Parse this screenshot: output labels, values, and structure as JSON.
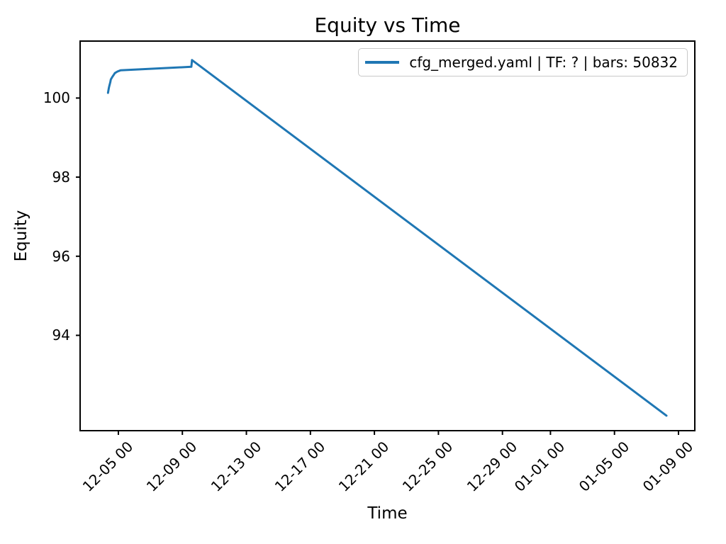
{
  "figure": {
    "background_color": "#ffffff",
    "text_color": "#000000",
    "spine_color": "#000000",
    "legend_border_color": "#c8c8c8"
  },
  "chart_data": {
    "type": "line",
    "title": "Equity vs Time",
    "xlabel": "Time",
    "ylabel": "Equity",
    "grid": false,
    "legend_position": "upper right",
    "x_unit_note": "x values are fractional day offsets from 12-01 00:00; tick labels shown as MM-DD HH",
    "xlim": [
      1.61,
      40.02
    ],
    "ylim": [
      91.59,
      101.44
    ],
    "x_ticks": [
      {
        "x": 4,
        "label": "12-05 00"
      },
      {
        "x": 8,
        "label": "12-09 00"
      },
      {
        "x": 12,
        "label": "12-13 00"
      },
      {
        "x": 16,
        "label": "12-17 00"
      },
      {
        "x": 20,
        "label": "12-21 00"
      },
      {
        "x": 24,
        "label": "12-25 00"
      },
      {
        "x": 28,
        "label": "12-29 00"
      },
      {
        "x": 31,
        "label": "01-01 00"
      },
      {
        "x": 35,
        "label": "01-05 00"
      },
      {
        "x": 39,
        "label": "01-09 00"
      }
    ],
    "y_ticks": [
      {
        "y": 94,
        "label": "94"
      },
      {
        "y": 96,
        "label": "96"
      },
      {
        "y": 98,
        "label": "98"
      },
      {
        "y": 100,
        "label": "100"
      }
    ],
    "series": [
      {
        "name": "cfg_merged.yaml | TF: ? | bars: 50832",
        "color": "#1f77b4",
        "line_width": 3,
        "points": [
          {
            "x": 3.35,
            "y": 100.13
          },
          {
            "x": 3.39,
            "y": 100.22
          },
          {
            "x": 3.41,
            "y": 100.26
          },
          {
            "x": 3.43,
            "y": 100.3
          },
          {
            "x": 3.47,
            "y": 100.36
          },
          {
            "x": 3.5,
            "y": 100.41
          },
          {
            "x": 3.53,
            "y": 100.47
          },
          {
            "x": 3.63,
            "y": 100.54
          },
          {
            "x": 3.7,
            "y": 100.58
          },
          {
            "x": 3.78,
            "y": 100.63
          },
          {
            "x": 3.94,
            "y": 100.67
          },
          {
            "x": 4.13,
            "y": 100.7
          },
          {
            "x": 8.56,
            "y": 100.79
          },
          {
            "x": 8.6,
            "y": 100.96
          },
          {
            "x": 38.25,
            "y": 91.97
          }
        ]
      }
    ]
  }
}
